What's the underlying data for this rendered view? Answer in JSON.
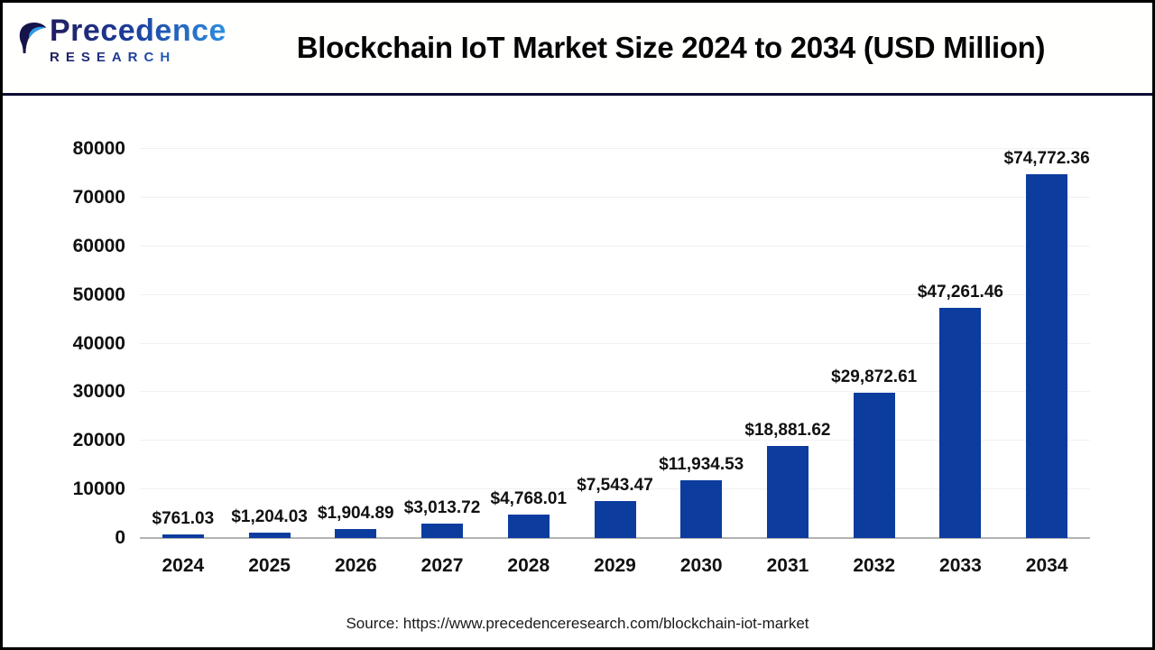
{
  "header": {
    "logo": {
      "line1": "Precedence",
      "line2": "RESEARCH"
    },
    "title": "Blockchain IoT Market Size 2024 to 2034 (USD Million)"
  },
  "chart_data": {
    "type": "bar",
    "title": "Blockchain IoT Market Size 2024 to 2034 (USD Million)",
    "categories": [
      "2024",
      "2025",
      "2026",
      "2027",
      "2028",
      "2029",
      "2030",
      "2031",
      "2032",
      "2033",
      "2034"
    ],
    "values": [
      761.03,
      1204.03,
      1904.89,
      3013.72,
      4768.01,
      7543.47,
      11934.53,
      18881.62,
      29872.61,
      47261.46,
      74772.36
    ],
    "value_labels": [
      "$761.03",
      "$1,204.03",
      "$1,904.89",
      "$3,013.72",
      "$4,768.01",
      "$7,543.47",
      "$11,934.53",
      "$18,881.62",
      "$29,872.61",
      "$47,261.46",
      "$74,772.36"
    ],
    "xlabel": "",
    "ylabel": "",
    "ylim": [
      0,
      80000
    ],
    "yticks": [
      0,
      10000,
      20000,
      30000,
      40000,
      50000,
      60000,
      70000,
      80000
    ],
    "grid": true,
    "legend": false,
    "bar_color": "#0b3c9e"
  },
  "footer": {
    "source": "Source: https://www.precedenceresearch.com/blockchain-iot-market"
  },
  "colors": {
    "bar": "#0b3c9e",
    "divider": "#0c0c33",
    "gridline": "#f1f1f1",
    "axis_line": "#b3b3b3",
    "logo_gradient_start": "#201d5f",
    "logo_gradient_end": "#2e8fe0",
    "title_text": "#050505",
    "label_text": "#111111"
  }
}
